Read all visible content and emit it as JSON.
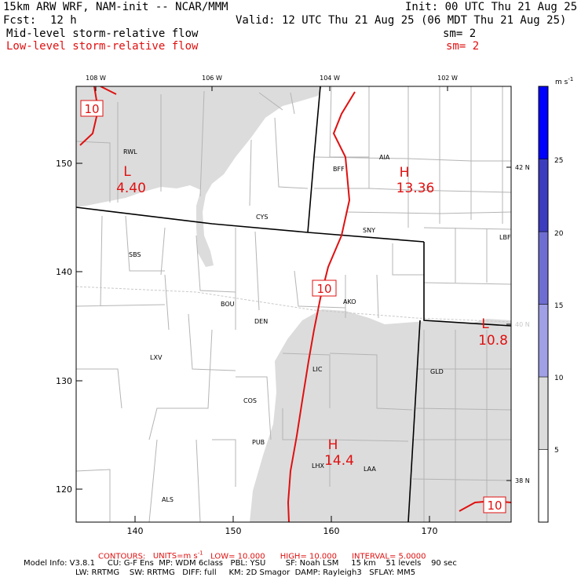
{
  "header": {
    "model": "15km ARW WRF, NAM-init -- NCAR/MMM",
    "init": "Init: 00 UTC Thu 21 Aug 25",
    "fcst_label": "Fcst:",
    "fcst_value": "12 h",
    "valid": "Valid: 12 UTC Thu 21 Aug 25 (06 MDT Thu 21 Aug 25)",
    "field_mid": "Mid-level storm-relative flow",
    "sm_mid": "sm= 2",
    "field_low": "Low-level storm-relative flow",
    "sm_low": "sm= 2"
  },
  "colors": {
    "contour": "#e01010",
    "shade_low": "#dcdcdc",
    "boundary": "#000000",
    "county": "#b4b4b4"
  },
  "map": {
    "top_ticks": [
      "108 W",
      "106 W",
      "104 W",
      "102 W"
    ],
    "left_ticks": [
      "150",
      "140",
      "130",
      "120"
    ],
    "bottom_ticks": [
      "140",
      "150",
      "160",
      "170"
    ],
    "right_ticks": [
      "42 N",
      "40 N",
      "38 N"
    ],
    "stations": [
      "RWL",
      "BFF",
      "AIA",
      "CYS",
      "SNY",
      "LBF",
      "SBS",
      "AKO",
      "BOU",
      "DEN",
      "LXV",
      "LIC",
      "GLD",
      "COS",
      "PUB",
      "LHX",
      "LAA",
      "ALS"
    ],
    "contour_labels": [
      "10",
      "10",
      "10"
    ],
    "extrema": [
      {
        "type": "L",
        "value": "4.40"
      },
      {
        "type": "H",
        "value": "13.36"
      },
      {
        "type": "L",
        "value": "10.8"
      },
      {
        "type": "H",
        "value": "14.4"
      }
    ]
  },
  "colorbar": {
    "unit": "m s",
    "unit_exp": "-1",
    "levels": [
      {
        "value": 5,
        "color": "#ffffff"
      },
      {
        "value": 10,
        "color": "#dcdcdc"
      },
      {
        "value": 15,
        "color": "#a0a0e6"
      },
      {
        "value": 20,
        "color": "#6e6ed2"
      },
      {
        "value": 25,
        "color": "#3c3cbe"
      },
      {
        "value": 30,
        "color": "#0000ff"
      }
    ],
    "labels": [
      "25",
      "20",
      "15",
      "10",
      "5"
    ]
  },
  "footer": {
    "contours_label": "CONTOURS:",
    "units": "UNITS=m s",
    "units_exp": "-1",
    "low": "LOW=  10.000",
    "high": "HIGH=  10.000",
    "interval": "INTERVAL=   5.0000",
    "model_info_1": "Model Info: V3.8.1     CU: G-F Ens  MP: WDM 6class   PBL: YSU        SF: Noah LSM     15 km    51 levels    90 sec",
    "model_info_2": "LW: RRTMG    SW: RRTMG   DIFF: full     KM: 2D Smagor  DAMP: Rayleigh3   SFLAY: MM5"
  }
}
